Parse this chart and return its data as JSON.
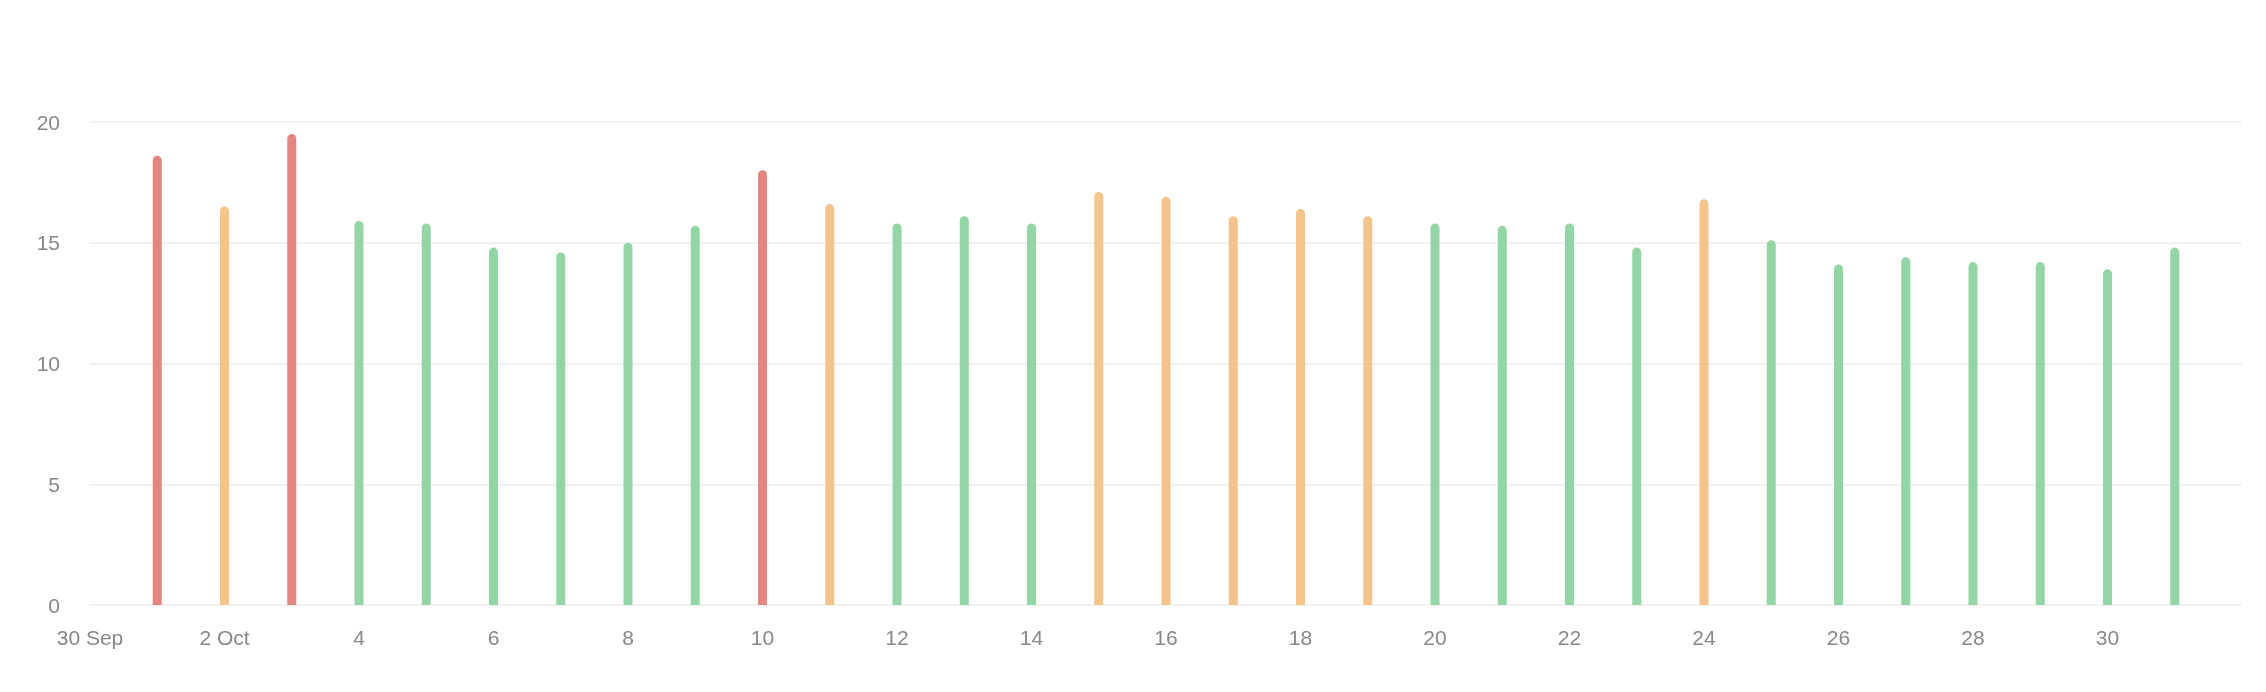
{
  "chart_data": {
    "type": "bar",
    "x": [
      "--10-01",
      "--10-02",
      "--10-03",
      "--10-04",
      "--10-05",
      "--10-06",
      "--10-07",
      "--10-08",
      "--10-09",
      "--10-10",
      "--10-11",
      "--10-12",
      "--10-13",
      "--10-14",
      "--10-15",
      "--10-16",
      "--10-17",
      "--10-18",
      "--10-19",
      "--10-20",
      "--10-21",
      "--10-22",
      "--10-23",
      "--10-24",
      "--10-25",
      "--10-26",
      "--10-27",
      "--10-28",
      "--10-29",
      "--10-30",
      "--10-31"
    ],
    "values": [
      18.6,
      16.5,
      19.5,
      15.9,
      15.8,
      14.8,
      14.6,
      15.0,
      15.7,
      18.0,
      16.6,
      15.8,
      16.1,
      15.8,
      17.1,
      16.9,
      16.1,
      16.4,
      16.1,
      15.8,
      15.7,
      15.8,
      14.8,
      16.8,
      15.1,
      14.1,
      14.4,
      14.2,
      14.2,
      13.9,
      14.8
    ],
    "colors": [
      "#e5857f",
      "#f5c48a",
      "#e5857f",
      "#93d5a5",
      "#93d5a5",
      "#93d5a5",
      "#93d5a5",
      "#93d5a5",
      "#93d5a5",
      "#e5857f",
      "#f5c48a",
      "#93d5a5",
      "#93d5a5",
      "#93d5a5",
      "#f5c48a",
      "#f5c48a",
      "#f5c48a",
      "#f5c48a",
      "#f5c48a",
      "#93d5a5",
      "#93d5a5",
      "#93d5a5",
      "#93d5a5",
      "#f5c48a",
      "#93d5a5",
      "#93d5a5",
      "#93d5a5",
      "#93d5a5",
      "#93d5a5",
      "#93d5a5",
      "#93d5a5"
    ],
    "xlim": [
      "--09-30",
      "--11-01"
    ],
    "xticks": [
      {
        "value": "--09-30",
        "label": "30 Sep"
      },
      {
        "value": "--10-02",
        "label": "2 Oct"
      },
      {
        "value": "--10-04",
        "label": "4"
      },
      {
        "value": "--10-06",
        "label": "6"
      },
      {
        "value": "--10-08",
        "label": "8"
      },
      {
        "value": "--10-10",
        "label": "10"
      },
      {
        "value": "--10-12",
        "label": "12"
      },
      {
        "value": "--10-14",
        "label": "14"
      },
      {
        "value": "--10-16",
        "label": "16"
      },
      {
        "value": "--10-18",
        "label": "18"
      },
      {
        "value": "--10-20",
        "label": "20"
      },
      {
        "value": "--10-22",
        "label": "22"
      },
      {
        "value": "--10-24",
        "label": "24"
      },
      {
        "value": "--10-26",
        "label": "26"
      },
      {
        "value": "--10-28",
        "label": "28"
      },
      {
        "value": "--10-30",
        "label": "30"
      }
    ],
    "ylim": [
      0,
      20
    ],
    "yticks": [
      0,
      5,
      10,
      15,
      20
    ],
    "grid": "y"
  }
}
